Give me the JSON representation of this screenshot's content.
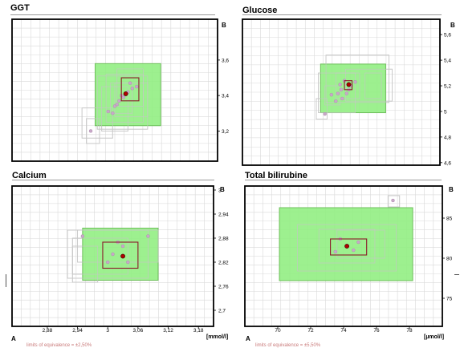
{
  "panels": {
    "ggt": {
      "title": "GGT"
    },
    "glucose": {
      "title": "Glucose"
    },
    "calcium": {
      "title": "Calcium"
    },
    "bilirubine": {
      "title": "Total bilirubine"
    }
  },
  "axis_names": {
    "a": "A",
    "b": "B"
  },
  "units_label": "[mmol/l]",
  "units_label_right": "[µmol/l]",
  "footnotes": {
    "left": "limits of equivalence = ±2,50%",
    "right": "limits of equivalence = ±5,50%"
  },
  "colors": {
    "frame": "#000000",
    "grid": "#d9d9d9",
    "equivalence_fill": "#90ee80",
    "equivalence_stroke": "#6fbf5c",
    "lab_box": "#c8c8c8",
    "center_box": "#8b1a2a",
    "point": "#c9a8c9",
    "center_point": "#b00000"
  },
  "chart_data": [
    {
      "type": "scatter",
      "title": "GGT",
      "xlabel": "A",
      "ylabel": "B",
      "xlim": [
        2.98,
        3.92
      ],
      "ylim": [
        3.03,
        3.83
      ],
      "xticks": [],
      "x_ticklabels": [],
      "yticks": [
        3.2,
        3.4,
        3.6
      ],
      "y_ticklabels": [
        "3,2",
        "3,4",
        "3,6"
      ],
      "grid": true,
      "equivalence_region": {
        "x": [
          3.36,
          3.66
        ],
        "y": [
          3.23,
          3.58
        ]
      },
      "confidence_box": {
        "x": [
          3.48,
          3.56
        ],
        "y": [
          3.37,
          3.5
        ]
      },
      "center": {
        "x": 3.5,
        "y": 3.41
      },
      "lab_boxes": [
        {
          "x": [
            3.37,
            3.6
          ],
          "y": [
            3.21,
            3.51
          ]
        },
        {
          "x": [
            3.43,
            3.53
          ],
          "y": [
            3.3,
            3.47
          ]
        },
        {
          "x": [
            3.41,
            3.58
          ],
          "y": [
            3.25,
            3.52
          ]
        },
        {
          "x": [
            3.46,
            3.58
          ],
          "y": [
            3.34,
            3.55
          ]
        },
        {
          "x": [
            3.3,
            3.44
          ],
          "y": [
            3.16,
            3.33
          ]
        },
        {
          "x": [
            3.32,
            3.38
          ],
          "y": [
            3.13,
            3.27
          ]
        },
        {
          "x": [
            3.45,
            3.6
          ],
          "y": [
            3.28,
            3.47
          ]
        },
        {
          "x": [
            3.39,
            3.51
          ],
          "y": [
            3.2,
            3.45
          ]
        }
      ],
      "points": [
        {
          "x": 3.34,
          "y": 3.2
        },
        {
          "x": 3.42,
          "y": 3.31
        },
        {
          "x": 3.45,
          "y": 3.34
        },
        {
          "x": 3.47,
          "y": 3.37
        },
        {
          "x": 3.49,
          "y": 3.39
        },
        {
          "x": 3.51,
          "y": 3.42
        },
        {
          "x": 3.53,
          "y": 3.44
        },
        {
          "x": 3.52,
          "y": 3.47
        },
        {
          "x": 3.46,
          "y": 3.35
        },
        {
          "x": 3.55,
          "y": 3.45
        },
        {
          "x": 3.44,
          "y": 3.3
        },
        {
          "x": 3.48,
          "y": 3.4
        }
      ]
    },
    {
      "type": "scatter",
      "title": "Glucose",
      "xlabel": "A",
      "ylabel": "B",
      "xlim": [
        4.2,
        6.02
      ],
      "ylim": [
        4.58,
        5.72
      ],
      "xticks": [],
      "x_ticklabels": [],
      "yticks": [
        4.6,
        4.8,
        5,
        5.2,
        5.4,
        5.6
      ],
      "y_ticklabels": [
        "4,6",
        "4,8",
        "5",
        "5,2",
        "5,4",
        "5,6"
      ],
      "grid": true,
      "equivalence_region": {
        "x": [
          4.92,
          5.52
        ],
        "y": [
          4.99,
          5.37
        ]
      },
      "confidence_box": {
        "x": [
          5.14,
          5.21
        ],
        "y": [
          5.17,
          5.24
        ]
      },
      "center": {
        "x": 5.18,
        "y": 5.21
      },
      "lab_boxes": [
        {
          "x": [
            4.97,
            5.55
          ],
          "y": [
            5.07,
            5.44
          ]
        },
        {
          "x": [
            5.15,
            5.58
          ],
          "y": [
            5.08,
            5.33
          ]
        },
        {
          "x": [
            4.9,
            5.24
          ],
          "y": [
            4.99,
            5.3
          ]
        },
        {
          "x": [
            5.06,
            5.28
          ],
          "y": [
            5.1,
            5.3
          ]
        },
        {
          "x": [
            5.33,
            5.48
          ],
          "y": [
            5.1,
            5.3
          ]
        },
        {
          "x": [
            4.96,
            5.1
          ],
          "y": [
            5.05,
            5.2
          ]
        },
        {
          "x": [
            4.88,
            4.98
          ],
          "y": [
            4.94,
            5.1
          ]
        }
      ],
      "points": [
        {
          "x": 4.96,
          "y": 4.98
        },
        {
          "x": 5.02,
          "y": 5.13
        },
        {
          "x": 5.06,
          "y": 5.08
        },
        {
          "x": 5.08,
          "y": 5.14
        },
        {
          "x": 5.11,
          "y": 5.17
        },
        {
          "x": 5.1,
          "y": 5.21
        },
        {
          "x": 5.12,
          "y": 5.1
        },
        {
          "x": 5.16,
          "y": 5.14
        },
        {
          "x": 5.2,
          "y": 5.2
        },
        {
          "x": 5.24,
          "y": 5.23
        },
        {
          "x": 5.14,
          "y": 5.24
        },
        {
          "x": 5.18,
          "y": 5.17
        }
      ]
    },
    {
      "type": "scatter",
      "title": "Calcium",
      "xlabel": "A",
      "ylabel": "B",
      "xlim": [
        2.81,
        3.21
      ],
      "ylim": [
        2.66,
        3.01
      ],
      "xticks": [
        2.88,
        2.94,
        3,
        3.06,
        3.12,
        3.18
      ],
      "x_ticklabels": [
        "2,88",
        "2,94",
        "3",
        "3,06",
        "3,12",
        "3,18"
      ],
      "yticks": [
        2.7,
        2.76,
        2.82,
        2.88,
        2.94,
        3
      ],
      "y_ticklabels": [
        "2,7",
        "2,76",
        "2,82",
        "2,88",
        "2,94",
        "3"
      ],
      "grid": true,
      "equivalence_region": {
        "x": [
          2.95,
          3.1
        ],
        "y": [
          2.775,
          2.905
        ]
      },
      "confidence_box": {
        "x": [
          2.99,
          3.06
        ],
        "y": [
          2.805,
          2.87
        ]
      },
      "center": {
        "x": 3.03,
        "y": 2.835
      },
      "lab_boxes": [
        {
          "x": [
            2.92,
            3.08
          ],
          "y": [
            2.78,
            2.9
          ]
        },
        {
          "x": [
            2.93,
            3.04
          ],
          "y": [
            2.79,
            2.88
          ]
        },
        {
          "x": [
            2.94,
            3.1
          ],
          "y": [
            2.82,
            2.9
          ]
        },
        {
          "x": [
            2.93,
            2.98
          ],
          "y": [
            2.77,
            2.86
          ]
        }
      ],
      "points": [
        {
          "x": 2.95,
          "y": 2.885
        },
        {
          "x": 3.08,
          "y": 2.885
        },
        {
          "x": 3.01,
          "y": 2.84
        },
        {
          "x": 3.03,
          "y": 2.86
        },
        {
          "x": 3.0,
          "y": 2.82
        },
        {
          "x": 3.04,
          "y": 2.82
        },
        {
          "x": 3.02,
          "y": 2.87
        }
      ]
    },
    {
      "type": "scatter",
      "title": "Total bilirubine",
      "xlabel": "A",
      "ylabel": "B",
      "xlim": [
        68,
        80
      ],
      "ylim": [
        71.5,
        89
      ],
      "xticks": [
        70,
        72,
        74,
        76,
        78
      ],
      "x_ticklabels": [
        "70",
        "72",
        "74",
        "76",
        "78"
      ],
      "yticks": [
        75,
        80,
        85
      ],
      "y_ticklabels": [
        "75",
        "80",
        "85"
      ],
      "grid": true,
      "equivalence_region": {
        "x": [
          70.1,
          78.2
        ],
        "y": [
          77.2,
          86.3
        ]
      },
      "confidence_box": {
        "x": [
          73.2,
          75.4
        ],
        "y": [
          80.4,
          82.4
        ]
      },
      "center": {
        "x": 74.2,
        "y": 81.5
      },
      "lab_boxes": [
        {
          "x": [
            71.2,
            77.2
          ],
          "y": [
            78.4,
            84.2
          ]
        },
        {
          "x": [
            72.5,
            75.9
          ],
          "y": [
            79.4,
            83.6
          ]
        },
        {
          "x": [
            73.6,
            76.5
          ],
          "y": [
            80,
            83.5
          ]
        },
        {
          "x": [
            76.7,
            77.4
          ],
          "y": [
            86.4,
            87.8
          ]
        }
      ],
      "points": [
        {
          "x": 77.0,
          "y": 87.2
        },
        {
          "x": 73.8,
          "y": 82.4
        },
        {
          "x": 74.6,
          "y": 81.0
        },
        {
          "x": 73.5,
          "y": 80.8
        },
        {
          "x": 74.9,
          "y": 82.0
        }
      ]
    }
  ]
}
